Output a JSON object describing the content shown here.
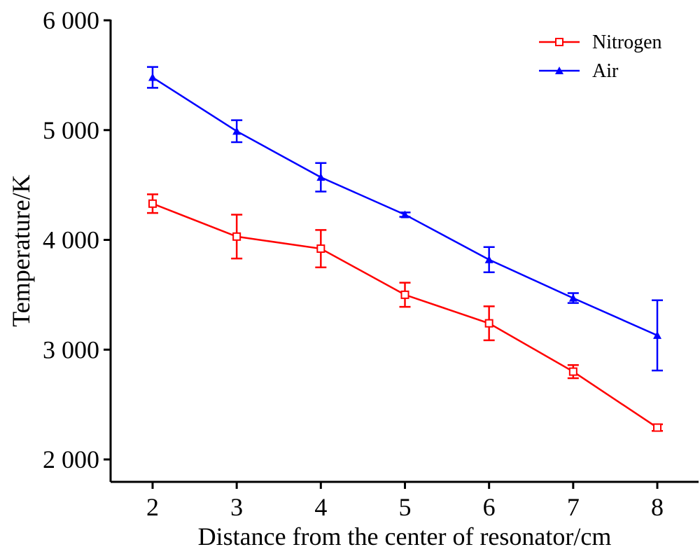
{
  "chart_data": {
    "type": "line",
    "title": "",
    "xlabel": "Distance from the center of resonator/cm",
    "ylabel": "Temperature/K",
    "x": [
      2,
      3,
      4,
      5,
      6,
      7,
      8
    ],
    "xlim": [
      1.5,
      8.5
    ],
    "ylim": [
      1800,
      6000
    ],
    "x_ticks": [
      2,
      3,
      4,
      5,
      6,
      7,
      8
    ],
    "x_tick_labels": [
      "2",
      "3",
      "4",
      "5",
      "6",
      "7",
      "8"
    ],
    "y_ticks": [
      2000,
      3000,
      4000,
      5000,
      6000
    ],
    "y_tick_labels": [
      "2 000",
      "3 000",
      "4 000",
      "5 000",
      "6 000"
    ],
    "grid": false,
    "legend_position": "top-right",
    "series": [
      {
        "name": "Nitrogen",
        "color": "#ff0000",
        "marker": "open-square",
        "values": [
          4330,
          4030,
          3920,
          3500,
          3240,
          2800,
          2290
        ],
        "error": [
          85,
          200,
          170,
          110,
          155,
          60,
          30
        ]
      },
      {
        "name": "Air",
        "color": "#0000ff",
        "marker": "filled-triangle",
        "values": [
          5480,
          4990,
          4570,
          4230,
          3820,
          3470,
          3130
        ],
        "error": [
          95,
          100,
          130,
          20,
          115,
          45,
          320
        ]
      }
    ]
  }
}
